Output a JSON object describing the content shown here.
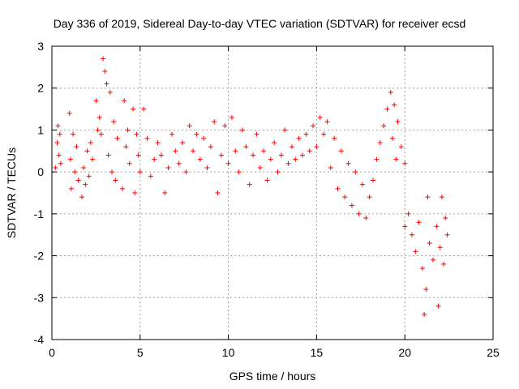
{
  "chart_data": {
    "type": "scatter",
    "title": "Day 336 of 2019, Sidereal Day-to-day VTEC variation (SDTVAR) for receiver ecsd",
    "xlabel": "GPS time / hours",
    "ylabel": "SDTVAR / TECUs",
    "xlim": [
      0,
      25
    ],
    "ylim": [
      -4,
      3
    ],
    "xticks": [
      0,
      5,
      10,
      15,
      20,
      25
    ],
    "yticks": [
      -4,
      -3,
      -2,
      -1,
      0,
      1,
      2,
      3
    ],
    "xtick_labels": [
      "0",
      "5",
      "10",
      "15",
      "20",
      "25"
    ],
    "ytick_labels": [
      "-4",
      "-3",
      "-2",
      "-1",
      "0",
      "1",
      "2",
      "3"
    ],
    "grid": true,
    "marker": "+",
    "color": "#ff0000",
    "series": [
      {
        "name": "SDTVAR",
        "points": [
          [
            0.2,
            0.1
          ],
          [
            0.3,
            0.7
          ],
          [
            0.35,
            1.1
          ],
          [
            0.4,
            0.4
          ],
          [
            0.45,
            0.9
          ],
          [
            0.5,
            0.2
          ],
          [
            1.0,
            1.4
          ],
          [
            1.05,
            0.3
          ],
          [
            1.1,
            -0.4
          ],
          [
            1.2,
            0.9
          ],
          [
            1.3,
            0.0
          ],
          [
            1.4,
            0.6
          ],
          [
            1.5,
            -0.2
          ],
          [
            1.7,
            -0.6
          ],
          [
            1.8,
            0.1
          ],
          [
            1.9,
            -0.3
          ],
          [
            2.0,
            0.5
          ],
          [
            2.1,
            -0.1
          ],
          [
            2.2,
            0.7
          ],
          [
            2.3,
            0.3
          ],
          [
            2.5,
            1.7
          ],
          [
            2.6,
            1.0
          ],
          [
            2.7,
            1.3
          ],
          [
            2.8,
            0.9
          ],
          [
            2.9,
            2.7
          ],
          [
            3.0,
            2.4
          ],
          [
            3.1,
            2.1
          ],
          [
            3.2,
            0.4
          ],
          [
            3.3,
            1.9
          ],
          [
            3.4,
            0.0
          ],
          [
            3.5,
            1.2
          ],
          [
            3.6,
            -0.2
          ],
          [
            3.7,
            0.8
          ],
          [
            4.0,
            -0.4
          ],
          [
            4.1,
            1.7
          ],
          [
            4.2,
            0.6
          ],
          [
            4.3,
            1.0
          ],
          [
            4.4,
            0.2
          ],
          [
            4.6,
            1.5
          ],
          [
            4.7,
            -0.5
          ],
          [
            4.8,
            0.9
          ],
          [
            4.9,
            0.4
          ],
          [
            5.0,
            0.0
          ],
          [
            5.2,
            1.5
          ],
          [
            5.4,
            0.8
          ],
          [
            5.6,
            -0.1
          ],
          [
            5.8,
            0.3
          ],
          [
            6.0,
            0.7
          ],
          [
            6.2,
            0.4
          ],
          [
            6.4,
            -0.5
          ],
          [
            6.6,
            0.1
          ],
          [
            6.8,
            0.9
          ],
          [
            7.0,
            0.5
          ],
          [
            7.2,
            0.2
          ],
          [
            7.4,
            0.7
          ],
          [
            7.6,
            0.0
          ],
          [
            7.8,
            1.1
          ],
          [
            8.0,
            0.5
          ],
          [
            8.2,
            0.9
          ],
          [
            8.4,
            0.3
          ],
          [
            8.6,
            0.8
          ],
          [
            8.8,
            0.1
          ],
          [
            9.0,
            0.6
          ],
          [
            9.2,
            1.2
          ],
          [
            9.4,
            -0.5
          ],
          [
            9.6,
            0.4
          ],
          [
            9.8,
            1.1
          ],
          [
            10.0,
            0.2
          ],
          [
            10.2,
            1.3
          ],
          [
            10.4,
            0.5
          ],
          [
            10.6,
            0.0
          ],
          [
            10.8,
            1.0
          ],
          [
            11.0,
            0.6
          ],
          [
            11.2,
            -0.3
          ],
          [
            11.4,
            0.4
          ],
          [
            11.6,
            0.9
          ],
          [
            11.8,
            0.1
          ],
          [
            12.0,
            0.5
          ],
          [
            12.2,
            -0.2
          ],
          [
            12.4,
            0.3
          ],
          [
            12.6,
            0.7
          ],
          [
            12.8,
            0.0
          ],
          [
            13.0,
            0.4
          ],
          [
            13.2,
            1.0
          ],
          [
            13.4,
            0.2
          ],
          [
            13.6,
            0.6
          ],
          [
            13.8,
            0.3
          ],
          [
            14.0,
            0.8
          ],
          [
            14.2,
            0.4
          ],
          [
            14.4,
            0.9
          ],
          [
            14.6,
            0.5
          ],
          [
            14.8,
            1.1
          ],
          [
            15.0,
            0.6
          ],
          [
            15.2,
            1.3
          ],
          [
            15.4,
            0.9
          ],
          [
            15.6,
            1.2
          ],
          [
            15.8,
            0.1
          ],
          [
            16.0,
            0.8
          ],
          [
            16.2,
            -0.4
          ],
          [
            16.4,
            0.5
          ],
          [
            16.6,
            -0.6
          ],
          [
            16.8,
            0.2
          ],
          [
            17.0,
            -0.8
          ],
          [
            17.2,
            0.0
          ],
          [
            17.4,
            -1.0
          ],
          [
            17.6,
            -0.3
          ],
          [
            17.8,
            -1.1
          ],
          [
            18.0,
            -0.6
          ],
          [
            18.2,
            -0.2
          ],
          [
            18.4,
            0.3
          ],
          [
            18.6,
            0.7
          ],
          [
            18.8,
            1.1
          ],
          [
            19.0,
            1.5
          ],
          [
            19.2,
            1.9
          ],
          [
            19.3,
            0.8
          ],
          [
            19.4,
            1.6
          ],
          [
            19.5,
            0.3
          ],
          [
            19.6,
            1.2
          ],
          [
            19.8,
            0.6
          ],
          [
            20.0,
            0.2
          ],
          [
            20.0,
            -1.3
          ],
          [
            20.2,
            -1.0
          ],
          [
            20.4,
            -1.5
          ],
          [
            20.6,
            -1.9
          ],
          [
            20.8,
            -1.2
          ],
          [
            21.0,
            -2.3
          ],
          [
            21.1,
            -3.4
          ],
          [
            21.2,
            -2.8
          ],
          [
            21.3,
            -0.6
          ],
          [
            21.4,
            -1.7
          ],
          [
            21.6,
            -2.1
          ],
          [
            21.8,
            -1.3
          ],
          [
            21.9,
            -3.2
          ],
          [
            22.0,
            -1.8
          ],
          [
            22.1,
            -0.6
          ],
          [
            22.2,
            -2.2
          ],
          [
            22.3,
            -1.1
          ],
          [
            22.4,
            -1.5
          ]
        ]
      }
    ]
  }
}
